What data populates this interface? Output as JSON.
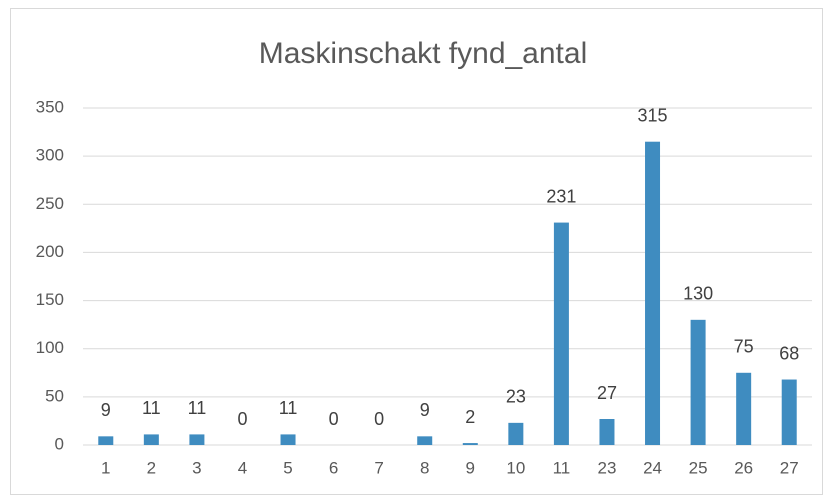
{
  "chart_data": {
    "type": "bar",
    "title": "Maskinschakt fynd_antal",
    "categories": [
      "1",
      "2",
      "3",
      "4",
      "5",
      "6",
      "7",
      "8",
      "9",
      "10",
      "11",
      "23",
      "24",
      "25",
      "26",
      "27"
    ],
    "values": [
      9,
      11,
      11,
      0,
      11,
      0,
      0,
      9,
      2,
      23,
      231,
      27,
      315,
      130,
      75,
      68
    ],
    "color": "#3f8cc0",
    "ylim": [
      0,
      350
    ],
    "yticks": [
      0,
      50,
      100,
      150,
      200,
      250,
      300,
      350
    ],
    "grid": true
  }
}
